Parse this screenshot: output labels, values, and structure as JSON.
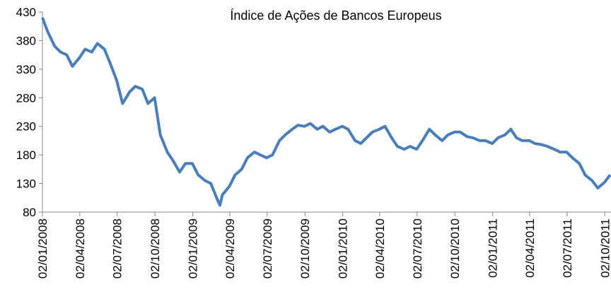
{
  "chart_data": {
    "type": "line",
    "title": "Índice de Ações de Bancos Europeus",
    "x": [
      "02/01/2008",
      "15/01/2008",
      "01/02/2008",
      "15/02/2008",
      "01/03/2008",
      "15/03/2008",
      "01/04/2008",
      "15/04/2008",
      "01/05/2008",
      "15/05/2008",
      "01/06/2008",
      "15/06/2008",
      "01/07/2008",
      "15/07/2008",
      "01/08/2008",
      "15/08/2008",
      "01/09/2008",
      "15/09/2008",
      "01/10/2008",
      "15/10/2008",
      "01/11/2008",
      "15/11/2008",
      "01/12/2008",
      "15/12/2008",
      "01/01/2009",
      "15/01/2009",
      "01/02/2009",
      "15/02/2009",
      "01/03/2009",
      "09/03/2009",
      "15/03/2009",
      "01/04/2009",
      "15/04/2009",
      "01/05/2009",
      "15/05/2009",
      "01/06/2009",
      "15/06/2009",
      "01/07/2009",
      "15/07/2009",
      "01/08/2009",
      "15/08/2009",
      "01/09/2009",
      "15/09/2009",
      "01/10/2009",
      "15/10/2009",
      "01/11/2009",
      "15/11/2009",
      "01/12/2009",
      "15/12/2009",
      "01/01/2010",
      "15/01/2010",
      "01/02/2010",
      "15/02/2010",
      "01/03/2010",
      "15/03/2010",
      "01/04/2010",
      "15/04/2010",
      "01/05/2010",
      "15/05/2010",
      "01/06/2010",
      "15/06/2010",
      "01/07/2010",
      "15/07/2010",
      "01/08/2010",
      "15/08/2010",
      "01/09/2010",
      "15/09/2010",
      "01/10/2010",
      "15/10/2010",
      "01/11/2010",
      "15/11/2010",
      "01/12/2010",
      "15/12/2010",
      "01/01/2011",
      "15/01/2011",
      "01/02/2011",
      "15/02/2011",
      "01/03/2011",
      "15/03/2011",
      "01/04/2011",
      "15/04/2011",
      "01/05/2011",
      "15/05/2011",
      "01/06/2011",
      "15/06/2011",
      "01/07/2011",
      "15/07/2011",
      "01/08/2011",
      "15/08/2011",
      "01/09/2011",
      "15/09/2011",
      "01/10/2011",
      "15/10/2011"
    ],
    "series": [
      {
        "name": "Índice de Ações de Bancos Europeus",
        "color": "#4a7ebb",
        "values": [
          420,
          395,
          370,
          360,
          355,
          335,
          350,
          365,
          360,
          375,
          365,
          340,
          310,
          270,
          290,
          300,
          295,
          270,
          280,
          215,
          185,
          170,
          150,
          165,
          165,
          145,
          135,
          130,
          105,
          92,
          110,
          125,
          145,
          155,
          175,
          185,
          180,
          175,
          180,
          205,
          215,
          225,
          232,
          230,
          235,
          225,
          230,
          220,
          225,
          230,
          225,
          205,
          200,
          210,
          220,
          225,
          230,
          210,
          195,
          190,
          195,
          190,
          205,
          225,
          215,
          205,
          215,
          220,
          220,
          212,
          210,
          205,
          205,
          200,
          210,
          215,
          225,
          210,
          205,
          205,
          200,
          198,
          195,
          190,
          185,
          185,
          175,
          165,
          145,
          135,
          122,
          132,
          145
        ]
      }
    ],
    "xlim": [
      "02/01/2008",
      "17/10/2011"
    ],
    "xticks": [
      "02/01/2008",
      "02/04/2008",
      "02/07/2008",
      "02/10/2008",
      "02/01/2009",
      "02/04/2009",
      "02/07/2009",
      "02/10/2009",
      "02/01/2010",
      "02/04/2010",
      "02/07/2010",
      "02/10/2010",
      "02/01/2011",
      "02/04/2011",
      "02/07/2011",
      "02/10/2011"
    ],
    "ylim": [
      80,
      430
    ],
    "yticks": [
      80,
      130,
      180,
      230,
      280,
      330,
      380,
      430
    ]
  }
}
